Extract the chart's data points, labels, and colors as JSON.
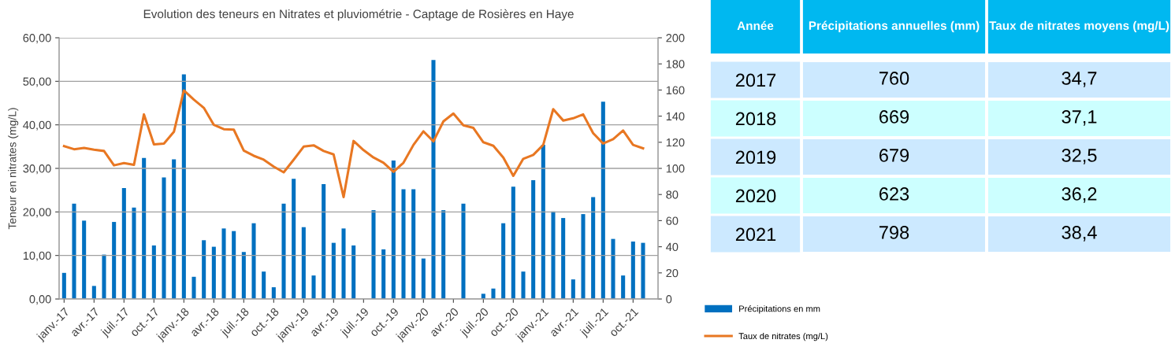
{
  "chart_data": [
    {
      "type": "bar",
      "title": "Evolution des teneurs en Nitrates et pluviométrie - Captage de Rosières en Haye",
      "ylabel": "Teneur en nitrates (mg/L)",
      "categories": [
        "janv.-17",
        null,
        null,
        "avr.-17",
        null,
        null,
        "juil.-17",
        null,
        null,
        "oct.-17",
        null,
        null,
        "janv.-18",
        null,
        null,
        "avr.-18",
        null,
        null,
        "juil.-18",
        null,
        null,
        "oct.-18",
        null,
        null,
        "janv.-19",
        null,
        null,
        "avr.-19",
        null,
        null,
        "juil.-19",
        null,
        null,
        "oct.-19",
        null,
        null,
        "janv.-20",
        null,
        null,
        "avr.-20",
        null,
        null,
        "juil.-20",
        null,
        null,
        "oct.-20",
        null,
        null,
        "janv.-21",
        null,
        null,
        "avr.-21",
        null,
        null,
        "juil.-21",
        null,
        null,
        "oct.-21",
        null,
        null
      ],
      "series": [
        {
          "name": "Précipitations en mm",
          "type": "bar",
          "axis": "y2",
          "color": "#0070c0",
          "values": [
            20,
            73,
            60,
            10,
            34,
            59,
            85,
            70,
            108,
            41,
            93,
            107,
            172,
            17,
            45,
            40,
            54,
            52,
            36,
            58,
            21,
            9,
            73,
            92,
            55,
            18,
            88,
            43,
            54,
            41,
            null,
            68,
            38,
            106,
            84,
            84,
            31,
            183,
            68,
            null,
            73,
            null,
            4,
            8,
            58,
            86,
            21,
            91,
            118,
            67,
            62,
            15,
            65,
            78,
            151,
            46,
            18,
            44,
            43,
            null
          ]
        },
        {
          "name": "Taux de nitrates (mg/L)",
          "type": "line",
          "color": "#e87722",
          "values": [
            35.1,
            34.4,
            34.7,
            34.3,
            34.0,
            30.7,
            31.2,
            30.8,
            42.4,
            35.5,
            35.7,
            38.4,
            47.9,
            45.8,
            43.9,
            40.0,
            39.0,
            38.9,
            34.1,
            32.9,
            32.0,
            30.4,
            29.1,
            32.0,
            35.0,
            35.3,
            34.0,
            33.2,
            23.4,
            36.3,
            34.2,
            32.5,
            31.3,
            29.2,
            31.3,
            35.4,
            38.5,
            36.2,
            40.8,
            42.6,
            39.9,
            39.3,
            36.0,
            35.2,
            32.5,
            28.3,
            32.2,
            33.1,
            35.4,
            43.6,
            41.0,
            41.5,
            42.4,
            38.1,
            35.7,
            36.7,
            38.7,
            35.4,
            34.6,
            null
          ]
        }
      ],
      "ylim": [
        0,
        60
      ],
      "yticks": [
        {
          "value": 0,
          "label": "0,00"
        },
        {
          "value": 10,
          "label": "10,00"
        },
        {
          "value": 20,
          "label": "20,00"
        },
        {
          "value": 30,
          "label": "30,00"
        },
        {
          "value": 40,
          "label": "40,00"
        },
        {
          "value": 50,
          "label": "50,00"
        },
        {
          "value": 60,
          "label": "60,00"
        }
      ],
      "y2lim": [
        0,
        200
      ],
      "y2ticks": [
        0,
        20,
        40,
        60,
        80,
        100,
        120,
        140,
        160,
        180,
        200
      ],
      "grid": "y",
      "legend": "bottom right",
      "marker": "none",
      "line_style": "solid"
    },
    {
      "type": "heatmap",
      "ylabel": "Année",
      "categories": [
        "Précipitations annuelles (mm)",
        "Taux de nitrates moyens (mg/L)"
      ],
      "y_categories": [
        "2017",
        "2018",
        "2019",
        "2020",
        "2021"
      ],
      "cells": [
        [
          760,
          34.7
        ],
        [
          669,
          37.1
        ],
        [
          679,
          32.5
        ],
        [
          623,
          36.2
        ],
        [
          798,
          38.4
        ]
      ],
      "cell_labels": [
        [
          "760",
          "34,7"
        ],
        [
          "669",
          "37,1"
        ],
        [
          "679",
          "32,5"
        ],
        [
          "623",
          "36,2"
        ],
        [
          "798",
          "38,4"
        ]
      ]
    }
  ]
}
